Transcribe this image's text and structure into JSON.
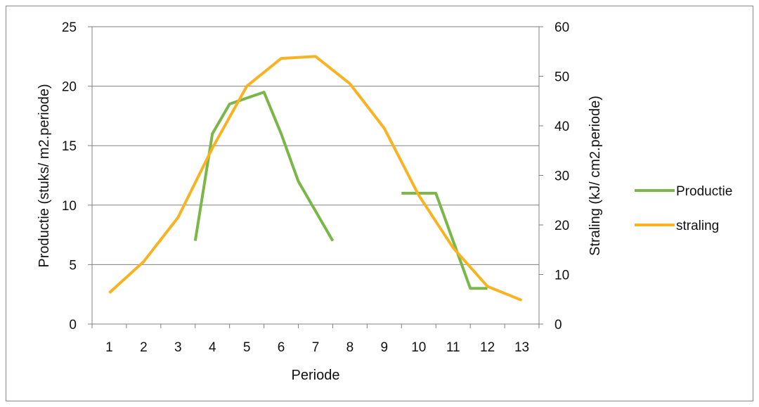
{
  "chart_data": {
    "type": "line",
    "xlabel": "Periode",
    "ylabel_left": "Productie (stuks/ m2.periode)",
    "ylabel_right": "Straling (kJ/ cm2.periode)",
    "categories": [
      "1",
      "2",
      "3",
      "4",
      "5",
      "6",
      "7",
      "8",
      "9",
      "10",
      "11",
      "12",
      "13"
    ],
    "ylim_left": [
      0,
      25
    ],
    "yticks_left": [
      "0",
      "5",
      "10",
      "15",
      "20",
      "25"
    ],
    "ylim_right": [
      0,
      60
    ],
    "yticks_right": [
      "0",
      "10",
      "20",
      "30",
      "40",
      "50",
      "60"
    ],
    "grid": true,
    "legend_position": "right",
    "series": [
      {
        "name": "Productie",
        "axis": "left",
        "color": "#7ab648",
        "x": [
          3.5,
          4,
          4.5,
          5,
          5.5,
          6,
          6.5,
          7,
          7.5,
          null,
          9.5,
          10,
          10.5,
          11,
          11.5,
          12
        ],
        "values": [
          7,
          16,
          18.5,
          19,
          19.5,
          16,
          12,
          9.5,
          7,
          null,
          11,
          11,
          11,
          7,
          3,
          3
        ]
      },
      {
        "name": "straling",
        "axis": "right",
        "color": "#f8b323",
        "x": [
          1,
          2,
          3,
          4,
          5,
          6,
          7,
          8,
          9,
          10,
          11,
          12,
          13
        ],
        "values": [
          6.3,
          12.6,
          21.5,
          35.5,
          48,
          53.6,
          54,
          48.5,
          39.5,
          26,
          15.4,
          7.6,
          4.8
        ]
      }
    ]
  }
}
